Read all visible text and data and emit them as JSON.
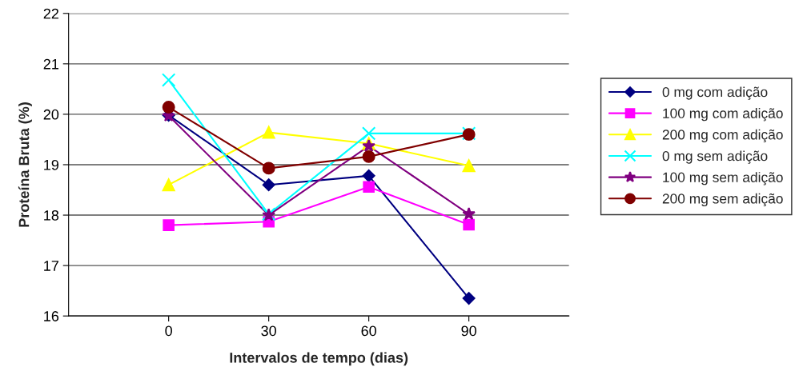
{
  "chart_data": {
    "type": "line",
    "xlabel": "Intervalos de tempo (dias)",
    "ylabel": "Proteína Bruta (%)",
    "categories": [
      "0",
      "30",
      "60",
      "90"
    ],
    "series": [
      {
        "name": "0 mg com adição",
        "color": "#000080",
        "marker": "diamond",
        "values": [
          19.98,
          18.6,
          18.78,
          16.35
        ]
      },
      {
        "name": "100 mg com adição",
        "color": "#ff00ff",
        "marker": "square",
        "values": [
          17.8,
          17.87,
          18.56,
          17.81
        ]
      },
      {
        "name": "200 mg com adição",
        "color": "#ffff00",
        "marker": "triangle",
        "values": [
          18.6,
          19.64,
          19.42,
          18.98
        ]
      },
      {
        "name": "0 mg sem adição",
        "color": "#00ffff",
        "marker": "cross",
        "values": [
          20.68,
          18.02,
          19.62,
          19.62
        ]
      },
      {
        "name": "100 mg sem adição",
        "color": "#800080",
        "marker": "star",
        "values": [
          19.97,
          18.0,
          19.37,
          18.02
        ]
      },
      {
        "name": "200 mg sem adição",
        "color": "#800000",
        "marker": "circle",
        "values": [
          20.14,
          18.93,
          19.16,
          19.6
        ]
      }
    ],
    "ylim": [
      16,
      22
    ],
    "yticks": [
      16,
      17,
      18,
      19,
      20,
      21,
      22
    ],
    "grid": "y",
    "legend": "right"
  }
}
